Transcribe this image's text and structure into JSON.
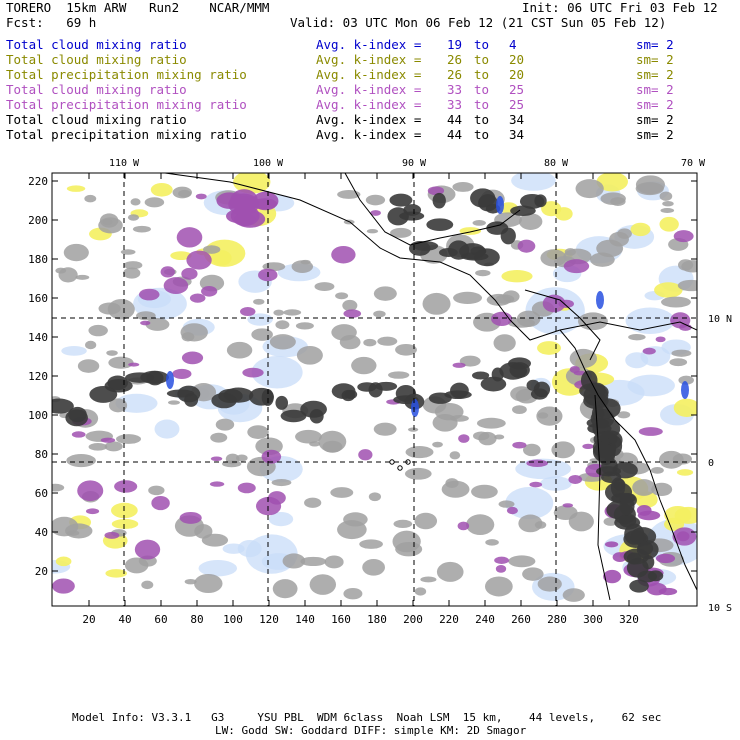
{
  "header": {
    "model": "TORERO  15km ARW   Run2    NCAR/MMM",
    "init": "Init: 06 UTC Fri 03 Feb 12",
    "fcst": "Fcst:   69 h",
    "valid": "Valid: 03 UTC Mon 06 Feb 12 (21 CST Sun 05 Feb 12)"
  },
  "fields": [
    {
      "name": "Total cloud mixing ratio",
      "kindex": "Avg. k-index =",
      "from": "19",
      "to_word": "to",
      "to": "4",
      "sm": "sm= 2",
      "color": "#0000cc"
    },
    {
      "name": "Total cloud mixing ratio",
      "kindex": "Avg. k-index =",
      "from": "26",
      "to_word": "to",
      "to": "20",
      "sm": "sm= 2",
      "color": "#8a8a00"
    },
    {
      "name": "Total precipitation mixing ratio",
      "kindex": "Avg. k-index =",
      "from": "26",
      "to_word": "to",
      "to": "20",
      "sm": "sm= 2",
      "color": "#8a8a00"
    },
    {
      "name": "Total cloud mixing ratio",
      "kindex": "Avg. k-index =",
      "from": "33",
      "to_word": "to",
      "to": "25",
      "sm": "sm= 2",
      "color": "#b050c0"
    },
    {
      "name": "Total precipitation mixing ratio",
      "kindex": "Avg. k-index =",
      "from": "33",
      "to_word": "to",
      "to": "25",
      "sm": "sm= 2",
      "color": "#b050c0"
    },
    {
      "name": "Total cloud mixing ratio",
      "kindex": "Avg. k-index =",
      "from": "44",
      "to_word": "to",
      "to": "34",
      "sm": "sm= 2",
      "color": "#000000"
    },
    {
      "name": "Total precipitation mixing ratio",
      "kindex": "Avg. k-index =",
      "from": "44",
      "to_word": "to",
      "to": "34",
      "sm": "sm= 2",
      "color": "#000000"
    }
  ],
  "map": {
    "lon_labels": [
      "110 W",
      "100 W",
      "90 W",
      "80 W",
      "70 W"
    ],
    "lat_labels": [
      "10 N",
      "0",
      "10 S"
    ],
    "x_ticks": [
      "20",
      "40",
      "60",
      "80",
      "100",
      "120",
      "140",
      "160",
      "180",
      "200",
      "220",
      "240",
      "260",
      "280",
      "300",
      "320"
    ],
    "y_ticks": [
      "220",
      "200",
      "180",
      "160",
      "140",
      "120",
      "100",
      "80",
      "60",
      "40",
      "20"
    ],
    "colors": {
      "gray": "#a0a0a0",
      "dark": "#3a3a3a",
      "purple": "#a050b0",
      "yellow": "#f4f060",
      "lightblue": "#c8dcf8",
      "blue": "#2850e0"
    }
  },
  "footer": {
    "line1": "Model Info: V3.3.1   G3     YSU PBL  WDM 6class  Noah LSM  15 km,    44 levels,    62 sec",
    "line2": "LW: Godd SW: Goddard DIFF: simple KM: 2D Smagor"
  }
}
